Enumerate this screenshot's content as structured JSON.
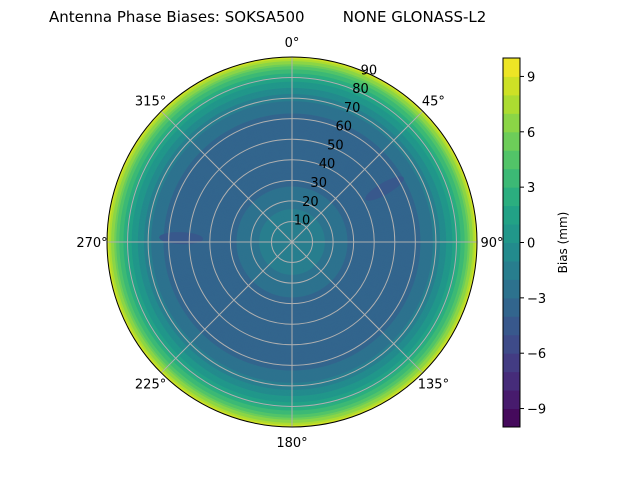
{
  "title": "Antenna Phase Biases: SOKSA500        NONE GLONASS-L2",
  "chart_data": {
    "type": "heatmap",
    "subtype": "polar-contour",
    "title": "Antenna Phase Biases: SOKSA500        NONE GLONASS-L2",
    "theta_ticks": [
      "0°",
      "45°",
      "90°",
      "135°",
      "180°",
      "225°",
      "270°",
      "315°"
    ],
    "theta_values": [
      0,
      45,
      90,
      135,
      180,
      225,
      270,
      315
    ],
    "r_ticks": [
      "10",
      "20",
      "30",
      "40",
      "50",
      "60",
      "70",
      "80",
      "90"
    ],
    "r_values": [
      10,
      20,
      30,
      40,
      50,
      60,
      70,
      80,
      90
    ],
    "rlim": [
      0,
      90
    ],
    "theta_direction": "clockwise",
    "theta_zero": "top",
    "radial_profile": {
      "zenith": [
        0,
        10,
        20,
        30,
        40,
        50,
        60,
        70,
        80,
        85,
        90
      ],
      "bias": [
        -1.2,
        -1.5,
        -2.3,
        -3.3,
        -3.8,
        -3.9,
        -3.5,
        -1.8,
        1.5,
        4.5,
        8.5
      ]
    },
    "local_minima": [
      {
        "azimuth": 60,
        "zenith": 52,
        "bias": -4.6
      },
      {
        "azimuth": 272,
        "zenith": 54,
        "bias": -4.6
      }
    ],
    "colorbar": {
      "label": "Bias (mm)",
      "range": [
        -10,
        10
      ],
      "levels": 20,
      "colormap": "viridis",
      "ticks": [
        -9,
        -6,
        -3,
        0,
        3,
        6,
        9
      ],
      "tick_labels": [
        "−9",
        "−6",
        "−3",
        "0",
        "3",
        "6",
        "9"
      ]
    }
  }
}
